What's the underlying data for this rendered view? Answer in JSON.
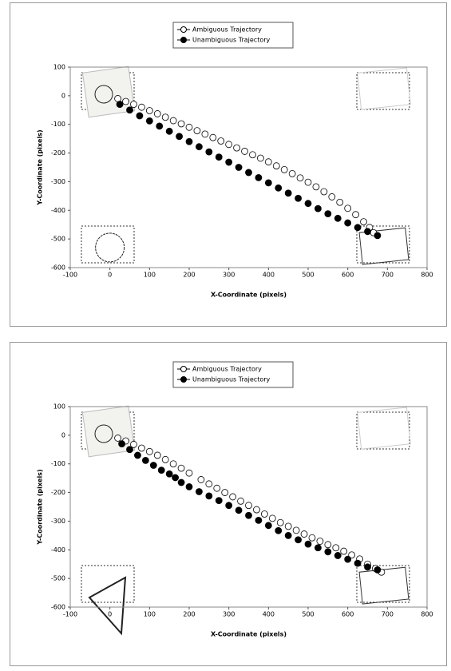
{
  "chart_data": [
    {
      "type": "scatter",
      "xlabel": "X-Coordinate (pixels)",
      "ylabel": "Y-Coordinate (pixels)",
      "xlim": [
        -100,
        800
      ],
      "ylim": [
        -600,
        100
      ],
      "xticks": [
        -100,
        0,
        100,
        200,
        300,
        400,
        500,
        600,
        700,
        800
      ],
      "yticks": [
        -600,
        -500,
        -400,
        -300,
        -200,
        -100,
        0,
        100
      ],
      "series": [
        {
          "name": "Ambiguous Trajectory",
          "color": "#000000",
          "fill": "#ffffff",
          "x": [
            20,
            40,
            60,
            80,
            100,
            120,
            140,
            160,
            180,
            200,
            220,
            240,
            260,
            280,
            300,
            320,
            340,
            360,
            380,
            400,
            420,
            440,
            460,
            480,
            500,
            520,
            540,
            560,
            580,
            600,
            620,
            640,
            655,
            665
          ],
          "values": [
            -10,
            -20,
            -30,
            -40,
            -52,
            -63,
            -75,
            -87,
            -98,
            -110,
            -122,
            -134,
            -146,
            -158,
            -170,
            -182,
            -194,
            -206,
            -218,
            -231,
            -245,
            -258,
            -272,
            -287,
            -302,
            -318,
            -335,
            -353,
            -372,
            -393,
            -415,
            -440,
            -460,
            -478
          ]
        },
        {
          "name": "Unambiguous Trajectory",
          "color": "#000000",
          "fill": "#000000",
          "x": [
            25,
            50,
            75,
            100,
            125,
            150,
            175,
            200,
            225,
            250,
            275,
            300,
            325,
            350,
            375,
            400,
            425,
            450,
            475,
            500,
            525,
            550,
            575,
            600,
            625,
            650,
            675
          ],
          "values": [
            -30,
            -50,
            -70,
            -88,
            -106,
            -124,
            -142,
            -160,
            -178,
            -196,
            -214,
            -232,
            -250,
            -268,
            -286,
            -304,
            -322,
            -340,
            -358,
            -376,
            -394,
            -412,
            -428,
            -444,
            -460,
            -474,
            -488
          ]
        }
      ]
    },
    {
      "type": "scatter",
      "xlabel": "X-Coordinate (pixels)",
      "ylabel": "Y-Coordinate (pixels)",
      "xlim": [
        -100,
        800
      ],
      "ylim": [
        -600,
        100
      ],
      "xticks": [
        -100,
        0,
        100,
        200,
        300,
        400,
        500,
        600,
        700,
        800
      ],
      "yticks": [
        -600,
        -500,
        -400,
        -300,
        -200,
        -100,
        0,
        100
      ],
      "series": [
        {
          "name": "Ambiguous Trajectory",
          "color": "#000000",
          "fill": "#ffffff",
          "x": [
            20,
            40,
            60,
            80,
            100,
            120,
            140,
            160,
            180,
            200,
            230,
            250,
            270,
            290,
            310,
            330,
            350,
            370,
            390,
            410,
            430,
            450,
            470,
            490,
            510,
            530,
            550,
            570,
            590,
            610,
            630,
            650,
            670,
            685
          ],
          "values": [
            -10,
            -20,
            -32,
            -45,
            -57,
            -70,
            -85,
            -100,
            -115,
            -132,
            -155,
            -170,
            -185,
            -200,
            -215,
            -230,
            -245,
            -260,
            -275,
            -290,
            -305,
            -318,
            -332,
            -345,
            -358,
            -370,
            -382,
            -393,
            -405,
            -418,
            -432,
            -450,
            -465,
            -478
          ]
        },
        {
          "name": "Unambiguous Trajectory",
          "color": "#000000",
          "fill": "#000000",
          "x": [
            30,
            50,
            70,
            90,
            110,
            130,
            150,
            165,
            180,
            200,
            225,
            250,
            275,
            300,
            325,
            350,
            375,
            400,
            425,
            450,
            475,
            500,
            525,
            550,
            575,
            600,
            625,
            650,
            675
          ],
          "values": [
            -30,
            -50,
            -70,
            -88,
            -105,
            -122,
            -135,
            -148,
            -165,
            -180,
            -197,
            -212,
            -228,
            -245,
            -262,
            -280,
            -297,
            -315,
            -333,
            -350,
            -365,
            -380,
            -393,
            -407,
            -420,
            -433,
            -447,
            -460,
            -470
          ]
        }
      ]
    }
  ]
}
